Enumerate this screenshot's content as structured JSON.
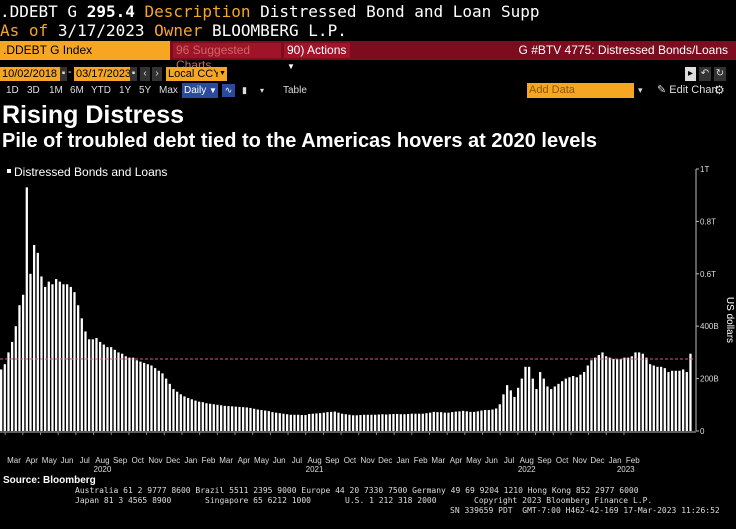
{
  "header": {
    "ticker": ".DDEBT G",
    "value": "295.4",
    "description_label": "Description",
    "description": "Distressed Bond and Loan Supp",
    "asof_label": "As of",
    "asof_date": "3/17/2023",
    "owner_label": "Owner",
    "owner": "BLOOMBERG L.P."
  },
  "toolbar": {
    "ticker_field": ".DDEBT G Index",
    "suggested_charts": "96 Suggested Charts",
    "actions": "90) Actions",
    "page_title": "G #BTV 4775: Distressed Bonds/Loans",
    "start_date": "10/02/2018",
    "end_date": "03/17/2023",
    "currency": "Local CCY",
    "periods": [
      "1D",
      "3D",
      "1M",
      "6M",
      "YTD",
      "1Y",
      "5Y",
      "Max"
    ],
    "frequency": "Daily",
    "table_label": "Table",
    "add_data_placeholder": "Add Data",
    "edit_chart": "Edit Chart"
  },
  "chart_data": {
    "type": "bar",
    "title": "Rising Distress",
    "subtitle": "Pile of troubled debt tied to the Americas hovers at 2020 levels",
    "legend": "Distressed Bonds and Loans",
    "ylabel": "US dollars",
    "y_ticks": [
      "0",
      "200B",
      "400B",
      "0.6T",
      "0.8T",
      "1T"
    ],
    "ylim": [
      0,
      1000
    ],
    "y_unit": "billions USD",
    "reference_line": 275,
    "grid": false,
    "month_labels": [
      "Mar",
      "Apr",
      "May",
      "Jun",
      "Jul",
      "Aug",
      "Sep",
      "Oct",
      "Nov",
      "Dec",
      "Jan",
      "Feb",
      "Mar",
      "Apr",
      "May",
      "Jun",
      "Jul",
      "Aug",
      "Sep",
      "Oct",
      "Nov",
      "Dec",
      "Jan",
      "Feb",
      "Mar",
      "Apr",
      "May",
      "Jun",
      "Jul",
      "Aug",
      "Sep",
      "Oct",
      "Nov",
      "Dec",
      "Jan",
      "Feb"
    ],
    "year_labels": [
      {
        "year": "2020",
        "month_index": 5
      },
      {
        "year": "2021",
        "month_index": 17
      },
      {
        "year": "2022",
        "month_index": 29
      },
      {
        "year": "2023",
        "month_index": 34.6
      }
    ],
    "start": "2020-02-24",
    "bar_interval_days": 7,
    "values": [
      235,
      255,
      300,
      340,
      400,
      480,
      520,
      930,
      600,
      710,
      680,
      590,
      550,
      570,
      560,
      580,
      570,
      560,
      560,
      550,
      530,
      480,
      430,
      380,
      350,
      350,
      355,
      340,
      330,
      320,
      320,
      310,
      300,
      295,
      285,
      280,
      280,
      270,
      265,
      260,
      255,
      250,
      240,
      230,
      220,
      200,
      180,
      160,
      150,
      140,
      132,
      126,
      121,
      116,
      112,
      110,
      106,
      104,
      102,
      100,
      98,
      96,
      95,
      94,
      93,
      92,
      91,
      90,
      88,
      85,
      82,
      80,
      78,
      76,
      72,
      70,
      68,
      66,
      64,
      62,
      62,
      62,
      61,
      61,
      65,
      66,
      67,
      68,
      70,
      72,
      73,
      74,
      70,
      66,
      64,
      62,
      60,
      60,
      61,
      62,
      62,
      62,
      62,
      63,
      64,
      63,
      64,
      65,
      65,
      64,
      64,
      65,
      66,
      66,
      66,
      66,
      68,
      70,
      73,
      72,
      72,
      70,
      70,
      72,
      74,
      75,
      77,
      75,
      73,
      73,
      75,
      78,
      80,
      80,
      82,
      86,
      102,
      140,
      175,
      155,
      130,
      165,
      200,
      245,
      245,
      200,
      160,
      225,
      200,
      170,
      160,
      170,
      180,
      190,
      200,
      205,
      210,
      205,
      215,
      225,
      250,
      270,
      280,
      290,
      300,
      285,
      280,
      275,
      275,
      275,
      280,
      280,
      285,
      300,
      300,
      295,
      280,
      255,
      250,
      245,
      245,
      240,
      225,
      230,
      230,
      230,
      235,
      225,
      295
    ]
  },
  "footer": {
    "source": "Source: Bloomberg",
    "line1": "Australia 61 2 9777 8600 Brazil 5511 2395 9000 Europe 44 20 7330 7500 Germany 49 69 9204 1210 Hong Kong 852 2977 6000",
    "line2a": "Japan 81 3 4565 8900",
    "line2b": "Singapore 65 6212 1000",
    "line2c": "U.S. 1 212 318 2000",
    "line2d": "Copyright 2023 Bloomberg Finance L.P.",
    "line3": "SN 339659 PDT  GMT-7:00 H462-42-169 17-Mar-2023 11:26:52"
  },
  "colors": {
    "bar": "#ffffff",
    "reference_line": "#e0559a",
    "accent": "#f5a623",
    "toolbar": "#7d0c1e"
  }
}
